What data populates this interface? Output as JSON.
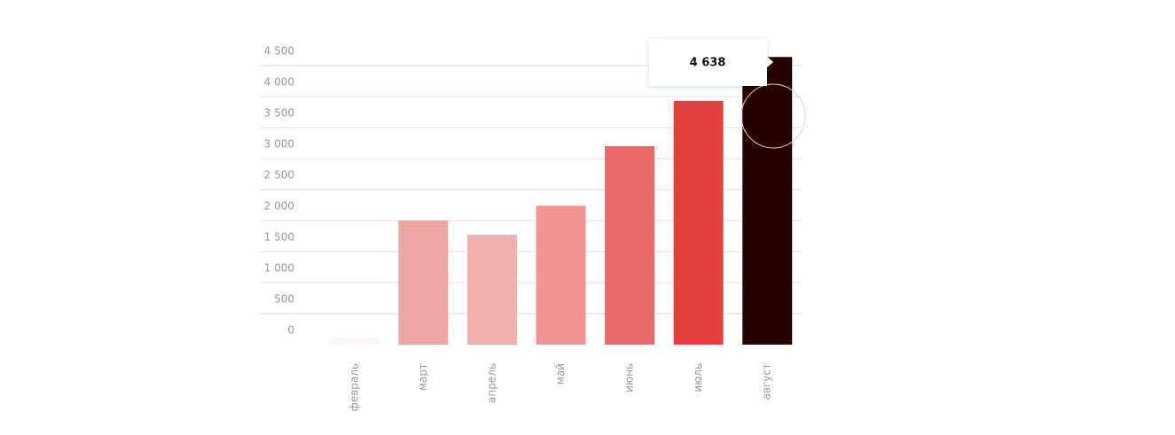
{
  "chart_data": {
    "type": "bar",
    "categories": [
      "февраль",
      "март",
      "апрель",
      "май",
      "июнь",
      "июль",
      "август"
    ],
    "values": [
      110,
      2000,
      1770,
      2240,
      3200,
      3930,
      4638
    ],
    "value_labels": [
      null,
      null,
      null,
      null,
      null,
      null,
      "4 638"
    ],
    "colors": [
      "#fbf5f5",
      "#eea6a2",
      "#f2b0ac",
      "#f09593",
      "#e86b6a",
      "#e2423f",
      "#260000"
    ],
    "ylim": [
      0,
      4638
    ],
    "yticks": [
      0,
      500,
      {
        "value": 1000,
        "label": "1 000"
      },
      {
        "value": 1500,
        "label": "1 500"
      },
      {
        "value": 2000,
        "label": "2 000"
      },
      {
        "value": 2500,
        "label": "2 500"
      },
      {
        "value": 3000,
        "label": "3 000"
      },
      {
        "value": 3500,
        "label": "3 500"
      },
      {
        "value": 4000,
        "label": "4 000"
      },
      {
        "value": 4500,
        "label": "4 500"
      }
    ],
    "grid": true
  }
}
